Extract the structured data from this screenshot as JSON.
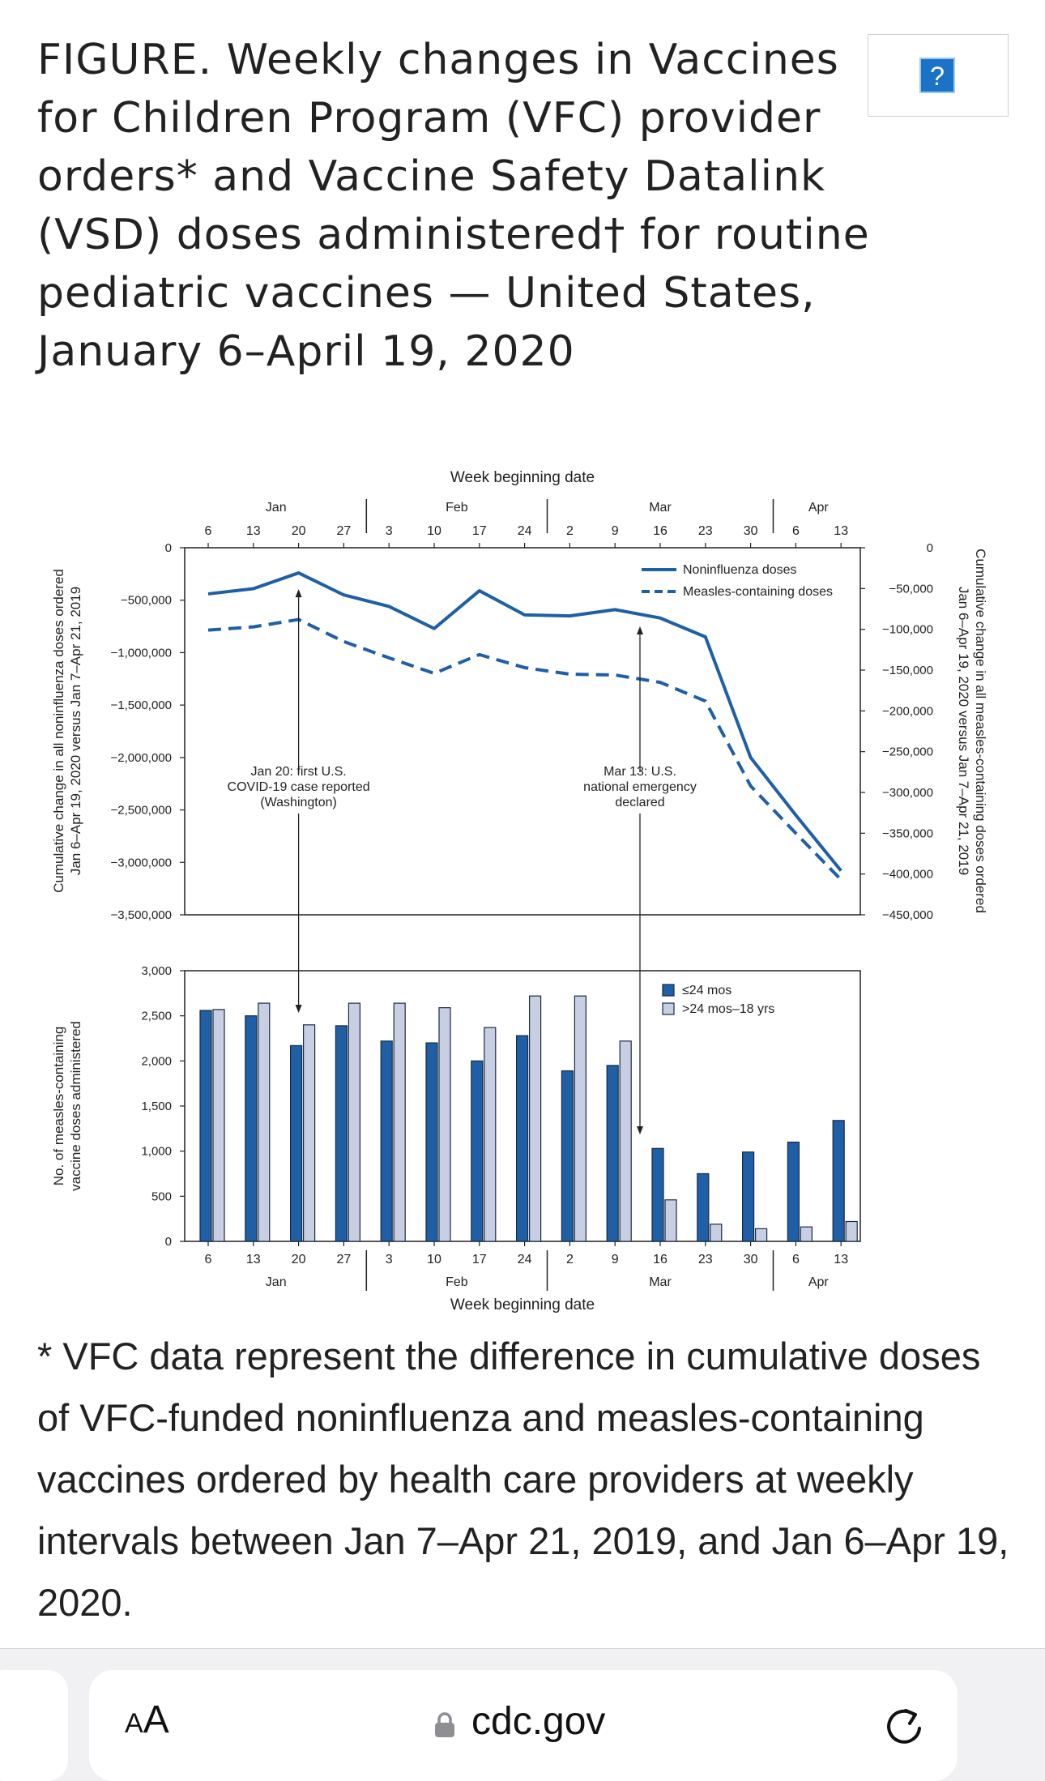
{
  "figure_title": "FIGURE. Weekly changes in Vaccines for Children Program (VFC) provider orders* and Vaccine Safety Datalink (VSD) doses administered† for routine pediatric vaccines — United States, January 6–April 19, 2020",
  "help_button": "?",
  "footnote": "* VFC data represent the difference in cumulative doses of VFC-funded noninfluenza and measles-containing vaccines ordered by health care providers at weekly intervals between Jan 7–Apr 21, 2019, and Jan 6–Apr 19, 2020.",
  "browser": {
    "text_size_small": "A",
    "text_size_big": "A",
    "domain": "cdc.gov",
    "reload_icon": "reload-icon",
    "lock_icon": "lock-icon"
  },
  "chart_data": [
    {
      "type": "line",
      "x_title": "Week beginning date",
      "x": [
        "6",
        "13",
        "20",
        "27",
        "3",
        "10",
        "17",
        "24",
        "2",
        "9",
        "16",
        "23",
        "30",
        "6",
        "13"
      ],
      "months": [
        {
          "label": "Jan",
          "weeks": [
            0,
            3
          ]
        },
        {
          "label": "Feb",
          "weeks": [
            4,
            7
          ]
        },
        {
          "label": "Mar",
          "weeks": [
            8,
            12
          ]
        },
        {
          "label": "Apr",
          "weeks": [
            13,
            14
          ]
        }
      ],
      "ylabel_left": "Cumulative change in all noninfluenza doses ordered Jan 6–Apr 19, 2020 versus Jan 7–Apr 21, 2019",
      "ylabel_right": "Cumulative change in all measles-containing doses ordered Jan 6–Apr 19, 2020 versus Jan 7–Apr 21, 2019",
      "ylim_left": [
        -3500000,
        0
      ],
      "yticks_left": [
        0,
        -500000,
        -1000000,
        -1500000,
        -2000000,
        -2500000,
        -3000000,
        -3500000
      ],
      "ytick_labels_left": [
        "0",
        "−500,000",
        "−1,000,000",
        "−1,500,000",
        "−2,000,000",
        "−2,500,000",
        "−3,000,000",
        "−3,500,000"
      ],
      "ylim_right": [
        -450000,
        0
      ],
      "yticks_right": [
        0,
        -50000,
        -100000,
        -150000,
        -200000,
        -250000,
        -300000,
        -350000,
        -400000,
        -450000
      ],
      "ytick_labels_right": [
        "0",
        "−50,000",
        "−100,000",
        "−150,000",
        "−200,000",
        "−250,000",
        "−300,000",
        "−350,000",
        "−400,000",
        "−450,000"
      ],
      "series": [
        {
          "name": "Noninfluenza doses",
          "axis": "left",
          "style": "solid",
          "color": "#1f5fa6",
          "values": [
            -440000,
            -390000,
            -240000,
            -450000,
            -560000,
            -770000,
            -410000,
            -640000,
            -650000,
            -590000,
            -670000,
            -850000,
            -2000000,
            -2550000,
            -3080000
          ]
        },
        {
          "name": "Measles-containing doses",
          "axis": "right",
          "style": "dashed",
          "color": "#1f5fa6",
          "values": [
            -101000,
            -97000,
            -88000,
            -115000,
            -135000,
            -154000,
            -131000,
            -147000,
            -155000,
            -156000,
            -165000,
            -188000,
            -292000,
            -350000,
            -407000
          ]
        }
      ],
      "annotations": [
        {
          "week": 2,
          "lines": [
            "Jan 20: first U.S.",
            "COVID-19 case reported",
            "(Washington)"
          ]
        },
        {
          "week": 10,
          "lines": [
            "Mar 13: U.S.",
            "national emergency",
            "declared"
          ]
        }
      ],
      "legend": "top-right"
    },
    {
      "type": "bar",
      "x_title": "Week beginning date",
      "categories": [
        "6",
        "13",
        "20",
        "27",
        "3",
        "10",
        "17",
        "24",
        "2",
        "9",
        "16",
        "23",
        "30",
        "6",
        "13"
      ],
      "ylabel": "No. of measles-containing vaccine doses administered",
      "ylim": [
        0,
        3000
      ],
      "yticks": [
        0,
        500,
        1000,
        1500,
        2000,
        2500,
        3000
      ],
      "ytick_labels": [
        "0",
        "500",
        "1,000",
        "1,500",
        "2,000",
        "2,500",
        "3,000"
      ],
      "series": [
        {
          "name": "≤24 mos",
          "color": "#1f5fa6",
          "values": [
            2560,
            2500,
            2170,
            2390,
            2220,
            2200,
            2000,
            2280,
            1890,
            1950,
            1030,
            750,
            990,
            1100,
            1340
          ]
        },
        {
          "name": ">24 mos–18 yrs",
          "color": "#c8cfe3",
          "values": [
            2570,
            2640,
            2400,
            2640,
            2640,
            2590,
            2370,
            2720,
            2720,
            2220,
            460,
            190,
            140,
            160,
            220
          ]
        }
      ],
      "legend": "top-right"
    }
  ]
}
